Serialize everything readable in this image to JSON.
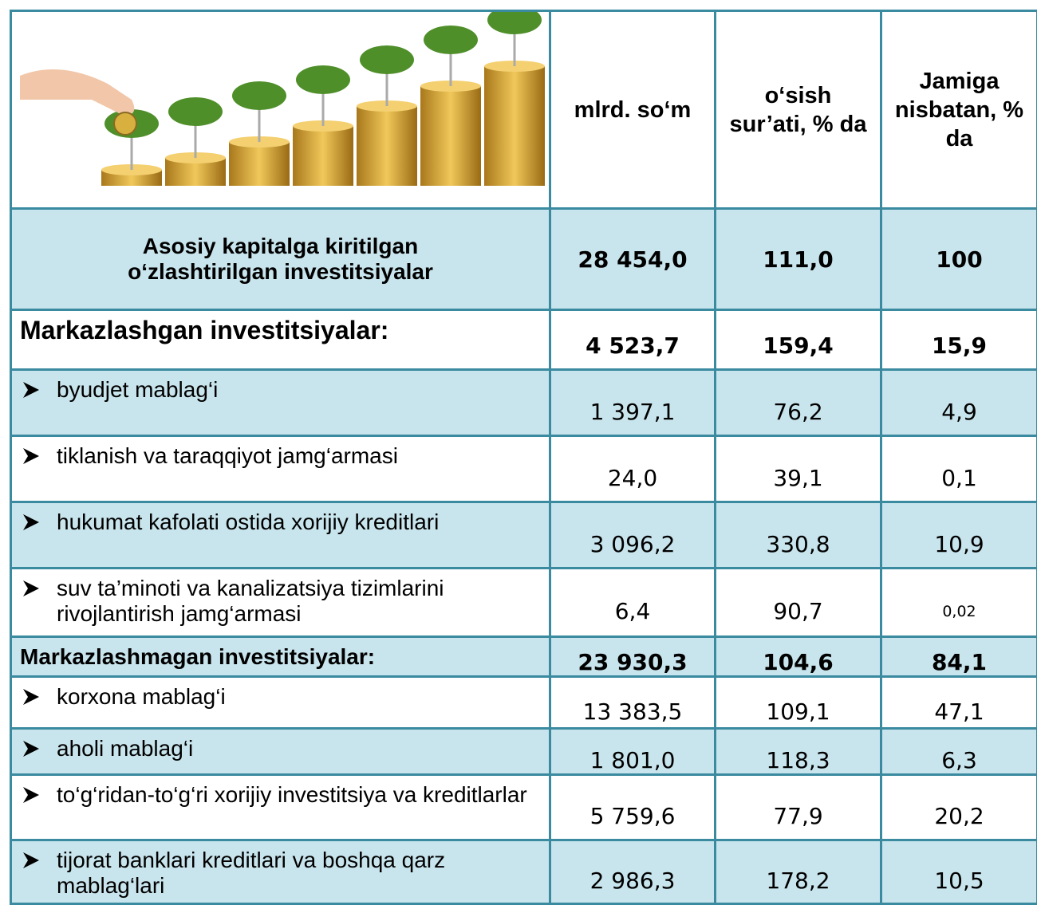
{
  "table": {
    "header": [
      "mlrd. so‘m",
      "o‘sish sur’ati, % da",
      "Jamiga nisbatan, % da"
    ],
    "rows": [
      {
        "label": "Asosiy kapitalga kiritilgan o‘zlashtirilgan investitsiyalar",
        "values": [
          "28 454,0",
          "111,0",
          "100"
        ]
      },
      {
        "label": "Markazlashgan investitsiyalar:",
        "values": [
          "4 523,7",
          "159,4",
          "15,9"
        ]
      },
      {
        "label": "byudjet mablag‘i",
        "values": [
          "1 397,1",
          "76,2",
          "4,9"
        ]
      },
      {
        "label": "tiklanish va taraqqiyot jamg‘armasi",
        "values": [
          "24,0",
          "39,1",
          "0,1"
        ]
      },
      {
        "label": "hukumat kafolati ostida xorijiy kreditlari",
        "values": [
          "3 096,2",
          "330,8",
          "10,9"
        ]
      },
      {
        "label": "suv ta’minoti va kanalizatsiya tizimlarini rivojlantirish jamg‘armasi",
        "values": [
          "6,4",
          "90,7",
          "0,02"
        ]
      },
      {
        "label": "Markazlashmagan investitsiyalar:",
        "values": [
          "23 930,3",
          "104,6",
          "84,1"
        ]
      },
      {
        "label": "korxona mablag‘i",
        "values": [
          "13 383,5",
          "109,1",
          "47,1"
        ]
      },
      {
        "label": "aholi mablag‘i",
        "values": [
          "1 801,0",
          "118,3",
          "6,3"
        ]
      },
      {
        "label": "to‘g‘ridan-to‘g‘ri xorijiy investitsiya va kreditlarlar",
        "values": [
          "5 759,6",
          "77,9",
          "20,2"
        ]
      },
      {
        "label": "tijorat banklari kreditlari va boshqa qarz mablag‘lari",
        "values": [
          "2 986,3",
          "178,2",
          "10,5"
        ]
      }
    ]
  }
}
